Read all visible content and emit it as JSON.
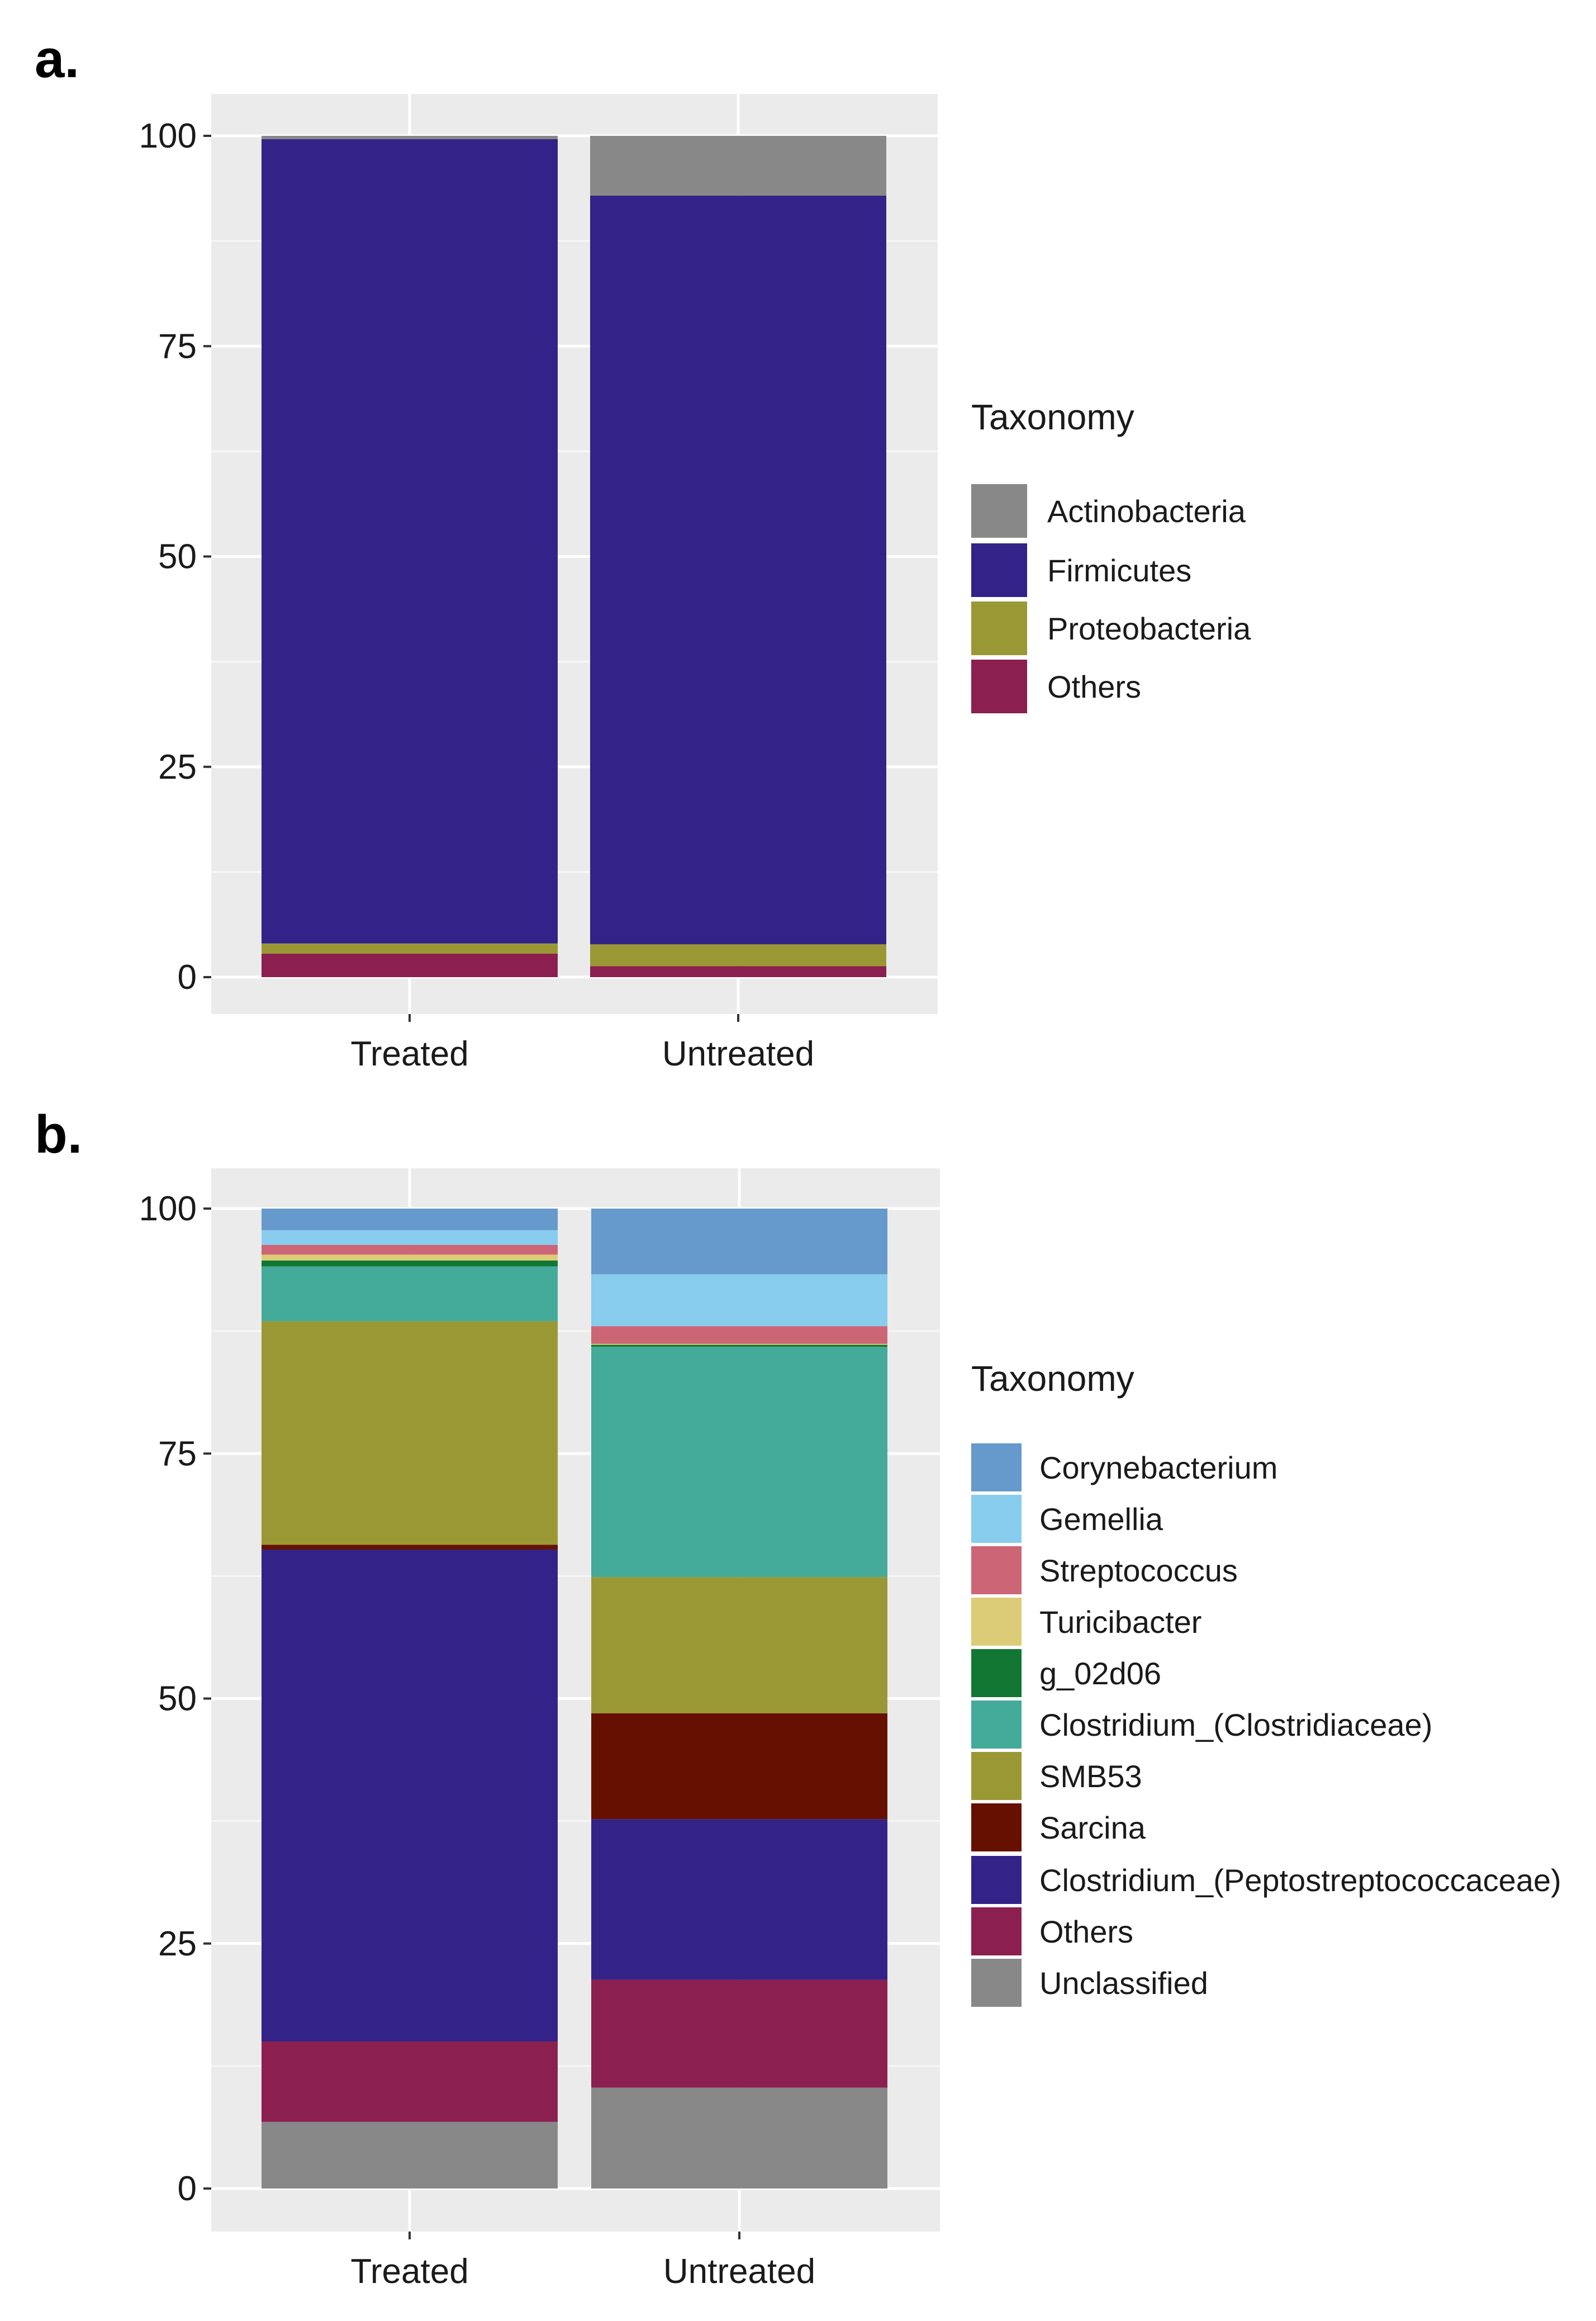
{
  "chart_data": [
    {
      "panel_label": "a.",
      "type": "bar",
      "stacked": true,
      "categories": [
        "Treated",
        "Untreated"
      ],
      "ylim": [
        0,
        100
      ],
      "yticks": [
        0,
        25,
        50,
        75,
        100
      ],
      "ytick_labels": [
        "0",
        "25",
        "50",
        "75",
        "100"
      ],
      "xlabel": "",
      "ylabel": "",
      "grid": true,
      "legend_title": "Taxonomy",
      "legend_position": "right",
      "series": [
        {
          "name": "Others",
          "color": "#8B1F50",
          "values": [
            2.8,
            1.3
          ]
        },
        {
          "name": "Proteobacteria",
          "color": "#9A9834",
          "values": [
            1.2,
            2.6
          ]
        },
        {
          "name": "Firmicutes",
          "color": "#332288",
          "values": [
            95.6,
            89.0
          ]
        },
        {
          "name": "Actinobacteria",
          "color": "#888888",
          "values": [
            0.4,
            7.1
          ]
        }
      ],
      "legend_order": [
        "Actinobacteria",
        "Firmicutes",
        "Proteobacteria",
        "Others"
      ]
    },
    {
      "panel_label": "b.",
      "type": "bar",
      "stacked": true,
      "categories": [
        "Treated",
        "Untreated"
      ],
      "ylim": [
        0,
        100
      ],
      "yticks": [
        0,
        25,
        50,
        75,
        100
      ],
      "ytick_labels": [
        "0",
        "25",
        "50",
        "75",
        "100"
      ],
      "xlabel": "",
      "ylabel": "",
      "grid": true,
      "legend_title": "Taxonomy",
      "legend_position": "right",
      "series": [
        {
          "name": "Unclassified",
          "color": "#888888",
          "values": [
            6.8,
            10.3
          ]
        },
        {
          "name": "Others",
          "color": "#8B1F50",
          "values": [
            8.2,
            11.0
          ]
        },
        {
          "name": "Clostridium_(Peptostreptococcaceae)",
          "color": "#332288",
          "values": [
            50.2,
            16.4
          ]
        },
        {
          "name": "Sarcina",
          "color": "#661100",
          "values": [
            0.5,
            10.8
          ]
        },
        {
          "name": "SMB53",
          "color": "#9A9834",
          "values": [
            22.8,
            13.9
          ]
        },
        {
          "name": "Clostridium_(Clostridiaceae)",
          "color": "#44AA99",
          "values": [
            5.6,
            23.5
          ]
        },
        {
          "name": "g_02d06",
          "color": "#117733",
          "values": [
            0.6,
            0.2
          ]
        },
        {
          "name": "Turicibacter",
          "color": "#DDCC77",
          "values": [
            0.6,
            0.1
          ]
        },
        {
          "name": "Streptococcus",
          "color": "#CC6677",
          "values": [
            1.0,
            1.8
          ]
        },
        {
          "name": "Gemellia",
          "color": "#88CCEE",
          "values": [
            1.5,
            5.3
          ]
        },
        {
          "name": "Corynebacterium",
          "color": "#6699CC",
          "values": [
            2.2,
            6.7
          ]
        }
      ],
      "legend_order": [
        "Corynebacterium",
        "Gemellia",
        "Streptococcus",
        "Turicibacter",
        "g_02d06",
        "Clostridium_(Clostridiaceae)",
        "SMB53",
        "Sarcina",
        "Clostridium_(Peptostreptococcaceae)",
        "Others",
        "Unclassified"
      ]
    }
  ]
}
